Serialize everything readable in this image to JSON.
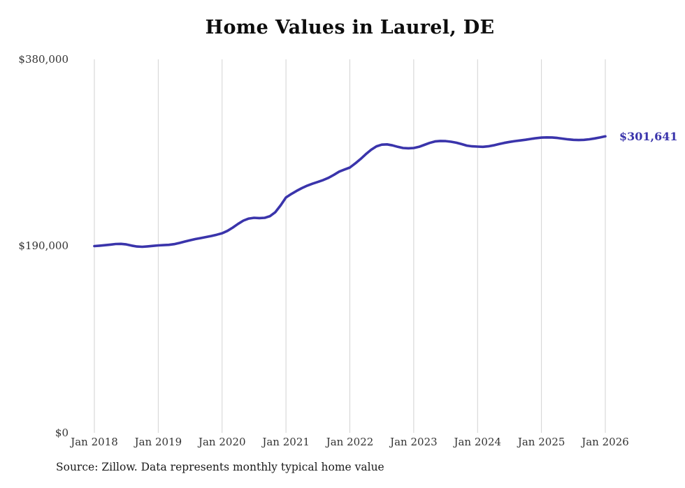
{
  "chart_data": {
    "type": "line",
    "title": "Home Values in Laurel, DE",
    "source": "Source: Zillow. Data represents monthly typical home value",
    "end_label": "$301,641",
    "final_value": 301641,
    "unit": "USD",
    "x_start": "Jan 2018",
    "frequency": "monthly",
    "x_tick_labels": [
      "Jan 2018",
      "Jan 2019",
      "Jan 2020",
      "Jan 2021",
      "Jan 2022",
      "Jan 2023",
      "Jan 2024",
      "Jan 2025",
      "Jan 2026"
    ],
    "y_tick_labels": [
      "$380,000",
      "$190,000",
      "$0"
    ],
    "y_ticks": [
      380000,
      190000,
      0
    ],
    "ylim": [
      0,
      380000
    ],
    "grid": true,
    "legend": "none",
    "line_color": "#3a34ab",
    "grid_color": "#d2d2d2",
    "values": [
      190000,
      190400,
      190900,
      191500,
      192100,
      192300,
      191700,
      190500,
      189600,
      189300,
      189700,
      190200,
      190700,
      191000,
      191300,
      192000,
      193200,
      194600,
      196000,
      197200,
      198200,
      199200,
      200300,
      201600,
      203100,
      205500,
      208800,
      212600,
      215900,
      218000,
      218800,
      218500,
      218800,
      220500,
      224500,
      231500,
      239400,
      243000,
      246200,
      249000,
      251500,
      253500,
      255300,
      257200,
      259500,
      262500,
      265800,
      267900,
      269900,
      274000,
      278500,
      283500,
      288000,
      291500,
      293200,
      293500,
      292500,
      291000,
      289800,
      289500,
      289800,
      291000,
      293000,
      295000,
      296500,
      297000,
      296800,
      296200,
      295200,
      293800,
      292200,
      291500,
      291200,
      291000,
      291500,
      292500,
      293800,
      295000,
      296000,
      296800,
      297500,
      298200,
      299000,
      299800,
      300400,
      300600,
      300500,
      300000,
      299300,
      298600,
      298100,
      297900,
      298100,
      298700,
      299500,
      300500,
      301641
    ]
  }
}
